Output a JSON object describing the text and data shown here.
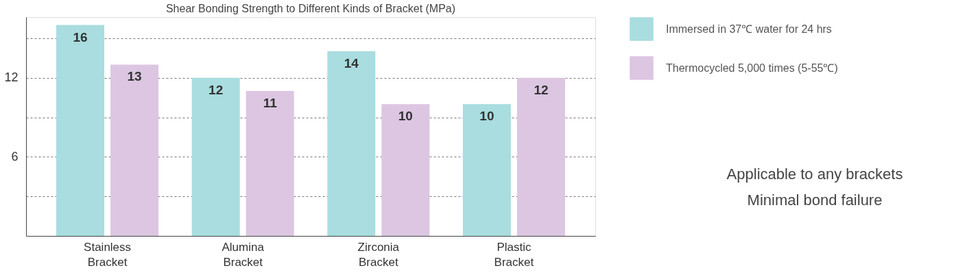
{
  "chart_data": {
    "type": "bar",
    "title": "Shear Bonding Strength to Different Kinds of Bracket  (MPa)",
    "categories": [
      "Stainless Bracket",
      "Alumina Bracket",
      "Zirconia Bracket",
      "Plastic Bracket"
    ],
    "series": [
      {
        "name": "Immersed in 37℃ water for 24 hrs",
        "color": "#a9dde0",
        "values": [
          16,
          12,
          14,
          10
        ]
      },
      {
        "name": "Thermocycled 5,000 times (5-55℃)",
        "color": "#dcc6e2",
        "values": [
          13,
          11,
          10,
          12
        ]
      }
    ],
    "ylim": [
      0,
      16.6
    ],
    "yticks": [
      {
        "value": 3,
        "label": null
      },
      6,
      {
        "value": 9,
        "label": null
      },
      12,
      {
        "value": 15,
        "label": null
      }
    ],
    "grid": "y",
    "legend": "right",
    "data_labels": true,
    "annotations": [
      "Applicable to any brackets",
      "Minimal bond failure"
    ]
  }
}
